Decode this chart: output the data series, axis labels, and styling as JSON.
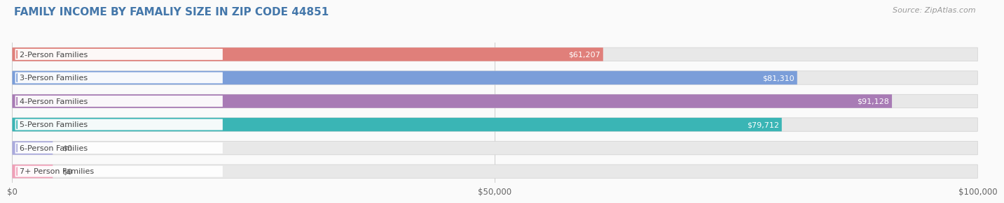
{
  "title": "FAMILY INCOME BY FAMALIY SIZE IN ZIP CODE 44851",
  "source": "Source: ZipAtlas.com",
  "categories": [
    "2-Person Families",
    "3-Person Families",
    "4-Person Families",
    "5-Person Families",
    "6-Person Families",
    "7+ Person Families"
  ],
  "values": [
    61207,
    81310,
    91128,
    79712,
    0,
    0
  ],
  "bar_colors": [
    "#E07F7A",
    "#7B9ED9",
    "#A87BB5",
    "#3AB5B5",
    "#AAAADD",
    "#F0A0B8"
  ],
  "bar_bg_color": "#E8E8E8",
  "xlim": [
    0,
    100000
  ],
  "xticks": [
    0,
    50000,
    100000
  ],
  "xtick_labels": [
    "$0",
    "$50,000",
    "$100,000"
  ],
  "value_labels": [
    "$61,207",
    "$81,310",
    "$91,128",
    "$79,712",
    "$0",
    "$0"
  ],
  "bg_color": "#FAFAFA",
  "title_color": "#4477AA",
  "source_color": "#999999",
  "title_fontsize": 11,
  "source_fontsize": 8,
  "label_fontsize": 8,
  "value_fontsize": 8
}
